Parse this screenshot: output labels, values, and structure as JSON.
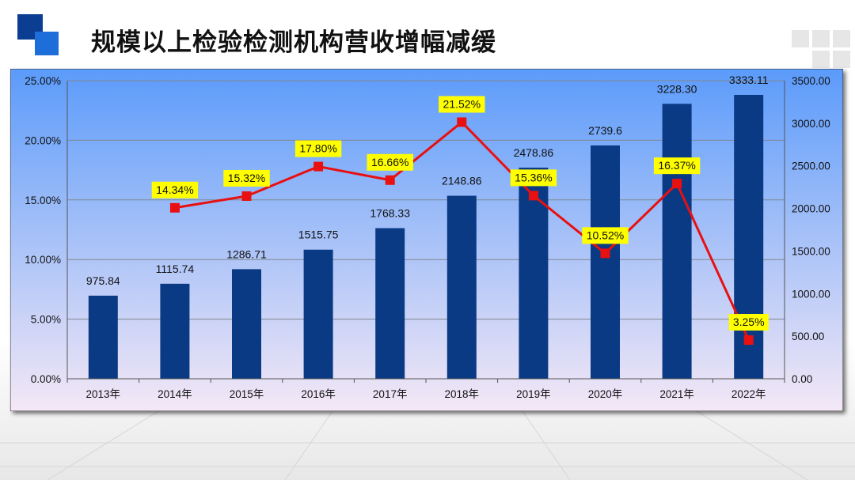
{
  "slide": {
    "title": "规模以上检验检测机构营收增幅减缓"
  },
  "theme": {
    "bar_color": "#0a3a84",
    "line_color": "#e81010",
    "label_bg": "#ffff00",
    "plot_top_color": "#5b9bfa",
    "plot_bottom_color": "#f4e8f6",
    "logo_dark": "#0b3e93",
    "logo_light": "#1e6ed9"
  },
  "chart_data": {
    "type": "bar",
    "categories": [
      "2013年",
      "2014年",
      "2015年",
      "2016年",
      "2017年",
      "2018年",
      "2019年",
      "2020年",
      "2021年",
      "2022年"
    ],
    "series": [
      {
        "type": "bar",
        "axis": "right",
        "values": [
          975.84,
          1115.74,
          1286.71,
          1515.75,
          1768.33,
          2148.86,
          2478.86,
          2739.6,
          3228.3,
          3333.11
        ],
        "value_labels": [
          "975.84",
          "1115.74",
          "1286.71",
          "1515.75",
          "1768.33",
          "2148.86",
          "2478.86",
          "2739.6",
          "3228.30",
          "3333.11"
        ]
      },
      {
        "type": "line",
        "axis": "left",
        "values": [
          null,
          14.34,
          15.32,
          17.8,
          16.66,
          21.52,
          15.36,
          10.52,
          16.37,
          3.25
        ],
        "value_labels": [
          null,
          "14.34%",
          "15.32%",
          "17.80%",
          "16.66%",
          "21.52%",
          "15.36%",
          "10.52%",
          "16.37%",
          "3.25%"
        ]
      }
    ],
    "y_left": {
      "range": [
        0,
        25
      ],
      "ticks": [
        "0.00%",
        "5.00%",
        "10.00%",
        "15.00%",
        "20.00%",
        "25.00%"
      ]
    },
    "y_right": {
      "range": [
        0,
        3500
      ],
      "ticks": [
        "0.00",
        "500.00",
        "1000.00",
        "1500.00",
        "2000.00",
        "2500.00",
        "3000.00",
        "3500.00"
      ]
    },
    "grid": true,
    "legend": "none"
  }
}
